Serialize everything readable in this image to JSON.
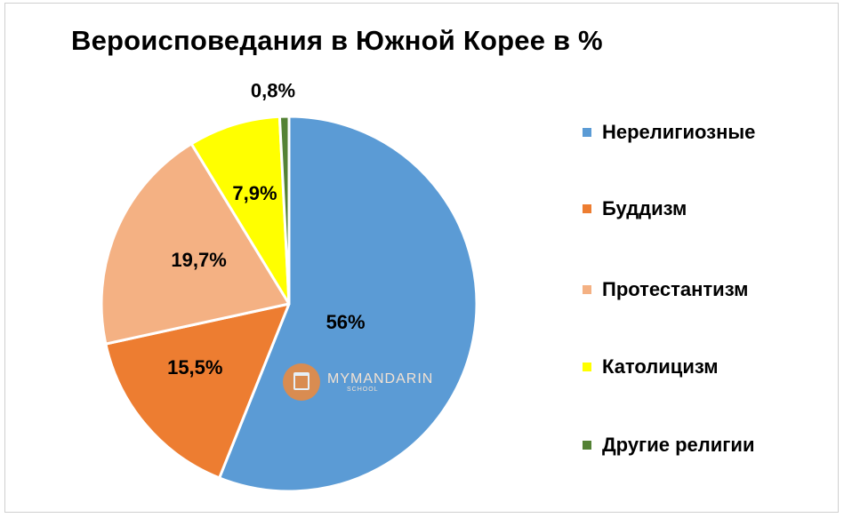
{
  "chart_data": {
    "type": "pie",
    "title": "Вероисповедания в Южной Корее в %",
    "categories": [
      "Нерелигиозные",
      "Буддизм",
      "Протестантизм",
      "Католицизм",
      "Другие религии"
    ],
    "values": [
      56,
      15.5,
      19.7,
      7.9,
      0.8
    ],
    "data_labels": [
      "56%",
      "15,5%",
      "19,7%",
      "7,9%",
      "0,8%"
    ],
    "colors": [
      "#5b9bd5",
      "#ed7d31",
      "#f4b183",
      "#ffff00",
      "#548235"
    ],
    "legend_position": "right",
    "start_angle_deg": 0,
    "direction": "clockwise"
  },
  "logo": {
    "name": "MYMANDARIN",
    "sub": "SCHOOL"
  }
}
